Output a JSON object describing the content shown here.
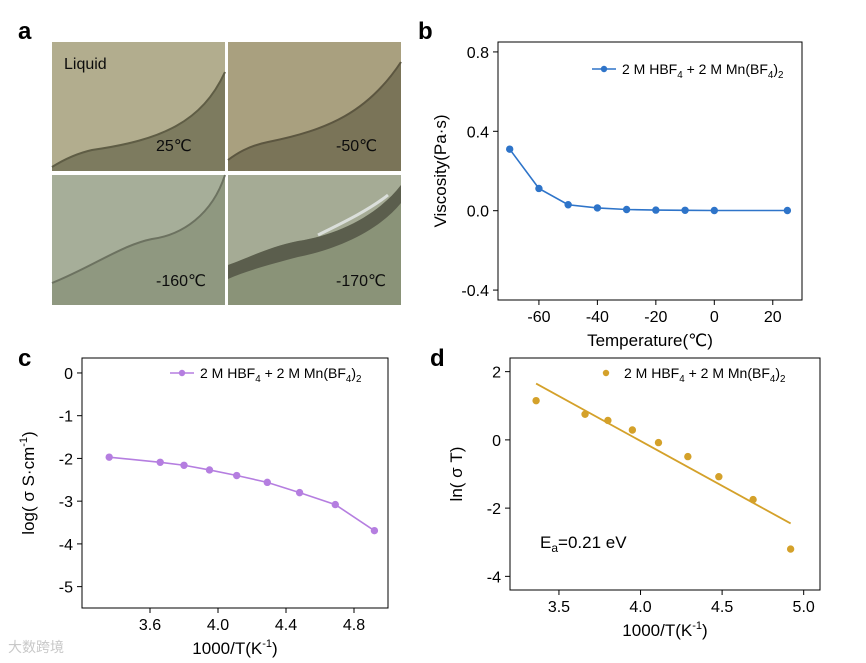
{
  "panel_labels": {
    "a": "a",
    "b": "b",
    "c": "c",
    "d": "d"
  },
  "photos": {
    "liquid_label": "Liquid",
    "tiles": [
      {
        "label": "25℃"
      },
      {
        "label": "-50℃"
      },
      {
        "label": "-160℃"
      },
      {
        "label": "-170℃"
      }
    ]
  },
  "watermark": "大数跨境",
  "colors": {
    "blue": "#2e74c9",
    "purple": "#b57ee0",
    "gold": "#d4a12a"
  },
  "chart_data": [
    {
      "id": "b",
      "type": "line",
      "xlabel": "Temperature(℃)",
      "ylabel": "Viscosity(Pa·s)",
      "xlim": [
        -74,
        30
      ],
      "ylim": [
        -0.45,
        0.85
      ],
      "xticks": [
        -60,
        -40,
        -20,
        0,
        20
      ],
      "yticks": [
        -0.4,
        0.0,
        0.4,
        0.8
      ],
      "xtick_labels": [
        "-60",
        "-40",
        "-20",
        "0",
        "20"
      ],
      "ytick_labels": [
        "-0.4",
        "0.0",
        "0.4",
        "0.8"
      ],
      "legend": "2 M HBF4 + 2 M Mn(BF4)2",
      "x": [
        -70,
        -60,
        -50,
        -40,
        -30,
        -20,
        -10,
        0,
        25
      ],
      "y": [
        0.31,
        0.112,
        0.03,
        0.014,
        0.006,
        0.003,
        0.002,
        0.001,
        0.001
      ]
    },
    {
      "id": "c",
      "type": "line",
      "xlabel": "1000/T(K-1)",
      "ylabel": "log( σ S·cm-1)",
      "xlim": [
        3.2,
        5.0
      ],
      "ylim": [
        -5.5,
        0.35
      ],
      "xticks": [
        3.6,
        4.0,
        4.4,
        4.8
      ],
      "yticks": [
        0,
        -1,
        -2,
        -3,
        -4,
        -5
      ],
      "xtick_labels": [
        "3.6",
        "4.0",
        "4.4",
        "4.8"
      ],
      "ytick_labels": [
        "0",
        "-1",
        "-2",
        "-3",
        "-4",
        "-5"
      ],
      "legend": "2 M HBF4 + 2 M Mn(BF4)2",
      "x": [
        3.36,
        3.66,
        3.8,
        3.95,
        4.11,
        4.29,
        4.48,
        4.69,
        4.92
      ],
      "y": [
        -1.97,
        -2.09,
        -2.16,
        -2.27,
        -2.4,
        -2.56,
        -2.8,
        -3.08,
        -3.69
      ]
    },
    {
      "id": "d",
      "type": "scatter",
      "xlabel": "1000/T(K-1)",
      "ylabel": "ln( σ T)",
      "xlim": [
        3.2,
        5.1
      ],
      "ylim": [
        -4.4,
        2.4
      ],
      "xticks": [
        3.5,
        4.0,
        4.5,
        5.0
      ],
      "yticks": [
        2,
        0,
        -2,
        -4
      ],
      "xtick_labels": [
        "3.5",
        "4.0",
        "4.5",
        "5.0"
      ],
      "ytick_labels": [
        "2",
        "0",
        "-2",
        "-4"
      ],
      "legend": "2 M HBF4 + 2 M Mn(BF4)2",
      "annotation": "Ea=0.21 eV",
      "x": [
        3.36,
        3.66,
        3.8,
        3.95,
        4.11,
        4.29,
        4.48,
        4.69,
        4.92
      ],
      "y": [
        1.15,
        0.75,
        0.57,
        0.29,
        -0.08,
        -0.49,
        -1.08,
        -1.75,
        -3.2
      ],
      "fit": {
        "x1": 3.36,
        "y1": 1.65,
        "x2": 4.92,
        "y2": -2.45
      }
    }
  ]
}
